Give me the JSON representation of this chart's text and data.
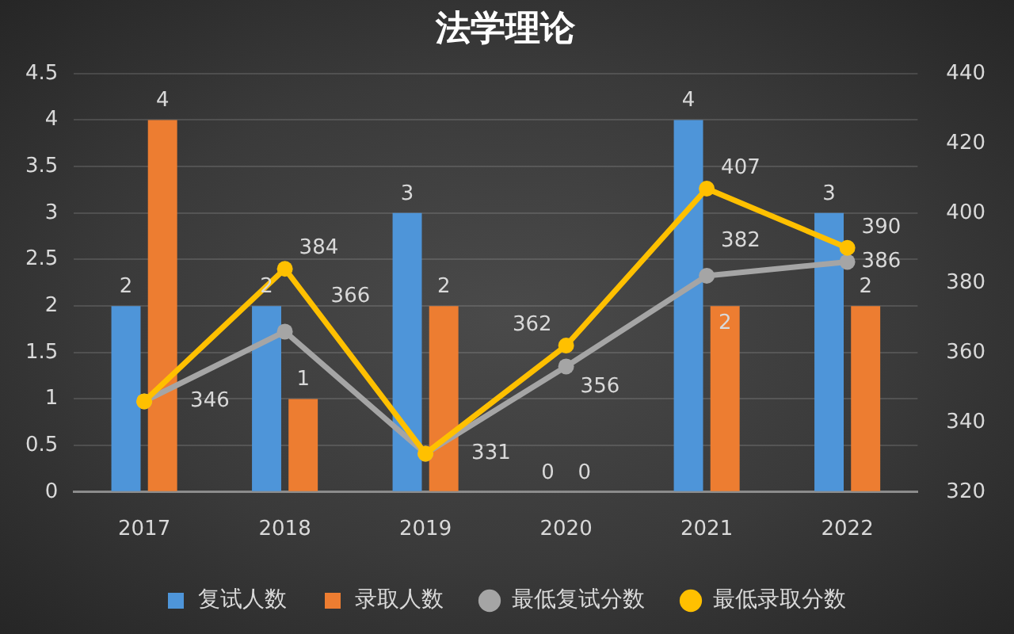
{
  "chart_data": {
    "type": "bar",
    "title": "法学理论",
    "categories": [
      "2017",
      "2018",
      "2019",
      "2020",
      "2021",
      "2022"
    ],
    "series": [
      {
        "name": "复试人数",
        "color": "#4e95d9",
        "values": [
          2,
          2,
          3,
          0,
          4,
          3
        ]
      },
      {
        "name": "录取人数",
        "color": "#ed7d31",
        "values": [
          4,
          1,
          2,
          0,
          2,
          2
        ]
      },
      {
        "name": "最低复试分数",
        "type": "line",
        "axis": "y2",
        "color": "#a5a5a5",
        "marker": "circle",
        "values": [
          346,
          366,
          331,
          356,
          382,
          386
        ],
        "value_labels": [
          null,
          "366",
          null,
          "356",
          "382",
          "386"
        ]
      },
      {
        "name": "最低录取分数",
        "type": "line",
        "axis": "y2",
        "color": "#ffc000",
        "marker": "circle",
        "values": [
          346,
          384,
          331,
          362,
          407,
          390
        ]
      }
    ],
    "ylim": [
      0,
      4.5
    ],
    "yticks": [
      0,
      0.5,
      1,
      1.5,
      2,
      2.5,
      3,
      3.5,
      4,
      4.5
    ],
    "y2lim": [
      320,
      440
    ],
    "y2ticks": [
      320,
      340,
      360,
      380,
      400,
      420,
      440
    ],
    "data_labels": true,
    "grid": "y",
    "legend": "bottom"
  }
}
